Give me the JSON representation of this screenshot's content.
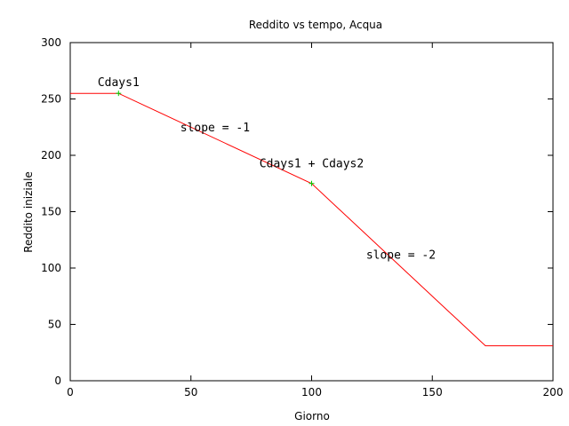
{
  "chart_data": {
    "type": "line",
    "title": "Reddito vs tempo, Acqua",
    "xlabel": "Giorno",
    "ylabel": "Reddito iniziale",
    "xlim": [
      0,
      200
    ],
    "ylim": [
      0,
      300
    ],
    "x_ticks": [
      0,
      50,
      100,
      150,
      200
    ],
    "y_ticks": [
      0,
      50,
      100,
      150,
      200,
      250,
      300
    ],
    "grid": false,
    "series": [
      {
        "color": "#ff0000",
        "points": [
          [
            0,
            255
          ],
          [
            20,
            255
          ],
          [
            100,
            175
          ],
          [
            172,
            31
          ],
          [
            200,
            31
          ]
        ]
      }
    ],
    "markers": [
      {
        "x": 20,
        "y": 255,
        "color": "#00cc00"
      },
      {
        "x": 100,
        "y": 175,
        "color": "#00cc00"
      }
    ],
    "annotations": [
      {
        "text": "Cdays1",
        "x": 20,
        "y": 255
      },
      {
        "text": "slope = -1",
        "x": 60,
        "y": 215
      },
      {
        "text": "Cdays1 + Cdays2",
        "x": 100,
        "y": 183
      },
      {
        "text": "slope = -2",
        "x": 137,
        "y": 102
      }
    ]
  }
}
